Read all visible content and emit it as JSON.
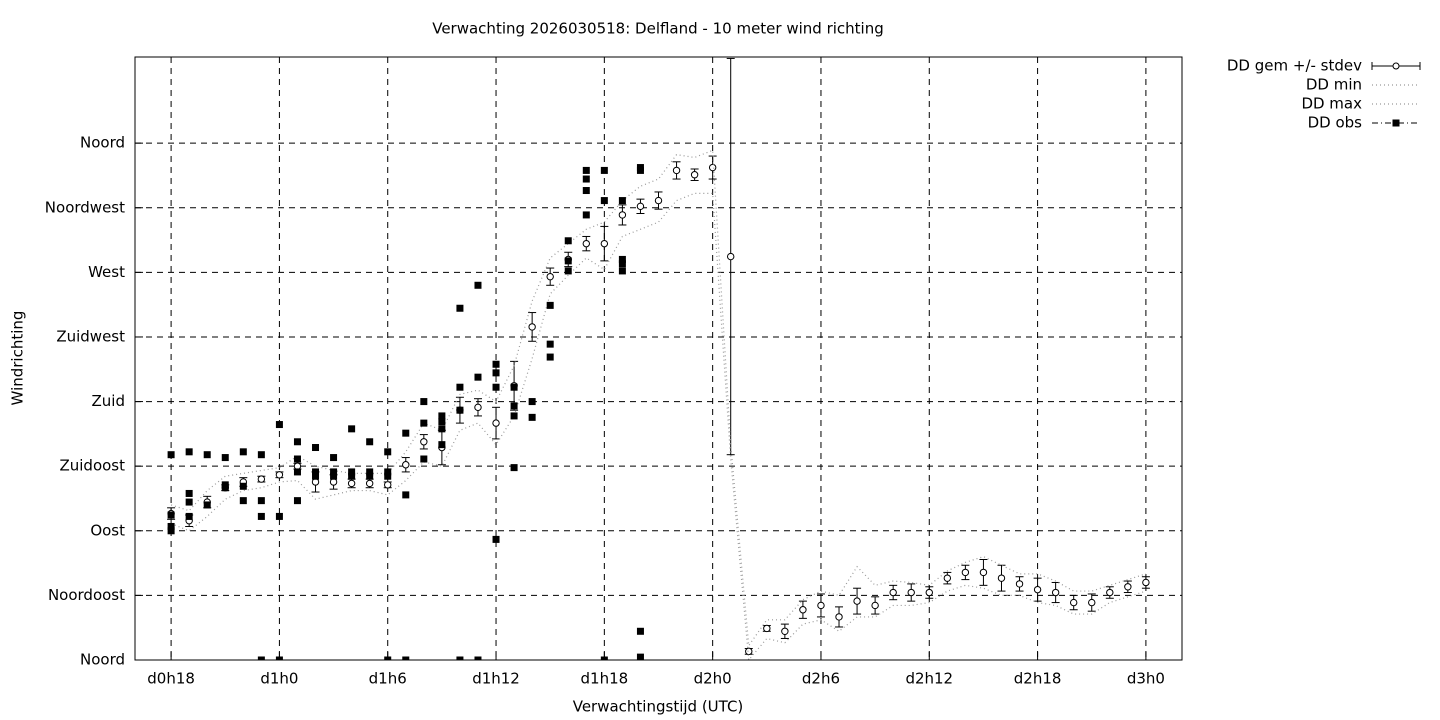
{
  "chart_data": {
    "type": "line",
    "title": "Verwachting 2026030518: Delfland - 10 meter wind richting",
    "x_label": "Verwachtingstijd (UTC)",
    "y_label": "Windrichting",
    "xlim": [
      16,
      74
    ],
    "xticks": [
      {
        "value": 18,
        "label": "d0h18"
      },
      {
        "value": 24,
        "label": "d1h0"
      },
      {
        "value": 30,
        "label": "d1h6"
      },
      {
        "value": 36,
        "label": "d1h12"
      },
      {
        "value": 42,
        "label": "d1h18"
      },
      {
        "value": 48,
        "label": "d2h0"
      },
      {
        "value": 54,
        "label": "d2h6"
      },
      {
        "value": 60,
        "label": "d2h12"
      },
      {
        "value": 66,
        "label": "d2h18"
      },
      {
        "value": 72,
        "label": "d3h0"
      }
    ],
    "ylim": [
      0,
      420
    ],
    "yticks": [
      {
        "value": 0,
        "label": "Noord"
      },
      {
        "value": 45,
        "label": "Noordoost"
      },
      {
        "value": 90,
        "label": "Oost"
      },
      {
        "value": 135,
        "label": "Zuidoost"
      },
      {
        "value": 180,
        "label": "Zuid"
      },
      {
        "value": 225,
        "label": "Zuidwest"
      },
      {
        "value": 270,
        "label": "West"
      },
      {
        "value": 315,
        "label": "Noordwest"
      },
      {
        "value": 360,
        "label": "Noord"
      }
    ],
    "grid": true,
    "legend": "outside-top-right",
    "x": [
      18,
      19,
      20,
      21,
      22,
      23,
      24,
      25,
      26,
      27,
      28,
      29,
      30,
      31,
      32,
      33,
      34,
      35,
      36,
      37,
      38,
      39,
      40,
      41,
      42,
      43,
      44,
      45,
      46,
      47,
      48,
      49,
      50,
      51,
      52,
      53,
      54,
      55,
      56,
      57,
      58,
      59,
      60,
      61,
      62,
      63,
      64,
      65,
      66,
      67,
      68,
      69,
      70,
      71,
      72
    ],
    "series": [
      {
        "name": "DD gem +/- stdev",
        "style": "errorbars",
        "color": "#000000",
        "values": [
          102,
          97,
          110,
          120,
          124,
          126,
          129,
          135,
          124,
          124,
          123,
          123,
          122,
          136,
          152,
          148,
          174,
          176,
          165,
          191,
          232,
          267,
          279,
          290,
          290,
          310,
          316,
          320,
          341,
          338,
          343,
          281,
          6,
          22,
          20,
          35,
          38,
          30,
          41,
          38,
          47,
          47,
          47,
          57,
          61,
          61,
          57,
          53,
          49,
          47,
          40,
          40,
          47,
          51,
          54
        ],
        "errors": [
          4,
          4,
          4,
          2,
          3,
          2,
          2,
          2,
          7,
          5,
          3,
          3,
          2,
          5,
          5,
          12,
          9,
          6,
          11,
          17,
          10,
          6,
          5,
          5,
          12,
          7,
          5,
          6,
          6,
          4,
          8,
          138,
          2,
          2,
          5,
          6,
          8,
          7,
          9,
          6,
          5,
          6,
          4,
          4,
          5,
          9,
          9,
          5,
          8,
          7,
          5,
          6,
          4,
          4,
          4
        ]
      },
      {
        "name": "DD min",
        "style": "dotted",
        "color": "#999999",
        "values": [
          95,
          90,
          100,
          112,
          118,
          120,
          124,
          125,
          112,
          115,
          118,
          118,
          115,
          125,
          138,
          135,
          160,
          165,
          150,
          170,
          210,
          255,
          268,
          280,
          272,
          295,
          300,
          305,
          320,
          325,
          325,
          140,
          0,
          15,
          12,
          25,
          28,
          20,
          30,
          30,
          38,
          38,
          40,
          48,
          52,
          50,
          45,
          45,
          40,
          38,
          32,
          32,
          40,
          44,
          48
        ]
      },
      {
        "name": "DD max",
        "style": "dotted",
        "color": "#999999",
        "values": [
          108,
          104,
          118,
          128,
          130,
          132,
          134,
          142,
          135,
          132,
          130,
          130,
          130,
          145,
          165,
          160,
          185,
          188,
          180,
          205,
          250,
          280,
          290,
          300,
          305,
          320,
          330,
          335,
          352,
          350,
          355,
          150,
          10,
          28,
          28,
          42,
          48,
          45,
          65,
          52,
          55,
          54,
          52,
          62,
          68,
          72,
          66,
          60,
          60,
          55,
          48,
          48,
          52,
          56,
          60
        ]
      },
      {
        "name": "DD obs",
        "style": "points",
        "color": "#000000",
        "x": [
          18,
          18,
          18,
          18,
          19,
          19,
          19,
          19,
          20,
          20,
          21,
          21,
          21,
          22,
          22,
          22,
          23,
          23,
          23,
          23,
          24,
          24,
          24,
          25,
          25,
          25,
          25,
          26,
          26,
          26,
          27,
          27,
          27,
          28,
          28,
          28,
          29,
          29,
          29,
          30,
          30,
          30,
          30,
          31,
          31,
          31,
          32,
          32,
          32,
          33,
          33,
          33,
          33,
          34,
          34,
          34,
          34,
          35,
          35,
          35,
          36,
          36,
          36,
          36,
          37,
          37,
          37,
          37,
          38,
          38,
          39,
          39,
          39,
          40,
          40,
          40,
          41,
          41,
          41,
          41,
          42,
          42,
          42,
          43,
          43,
          43,
          43,
          44,
          44,
          44,
          44
        ],
        "values": [
          143,
          101,
          93,
          90,
          145,
          116,
          110,
          100,
          143,
          108,
          141,
          122,
          120,
          145,
          121,
          111,
          143,
          111,
          100,
          0,
          164,
          100,
          0,
          152,
          140,
          131,
          111,
          148,
          131,
          128,
          141,
          131,
          128,
          161,
          131,
          128,
          152,
          131,
          128,
          145,
          131,
          128,
          0,
          158,
          115,
          0,
          180,
          165,
          140,
          170,
          166,
          161,
          150,
          245,
          190,
          174,
          0,
          261,
          197,
          0,
          206,
          200,
          190,
          84,
          190,
          177,
          170,
          134,
          180,
          169,
          247,
          220,
          211,
          292,
          278,
          271,
          341,
          335,
          327,
          310,
          341,
          320,
          0,
          320,
          279,
          276,
          271,
          343,
          341,
          20,
          2
        ]
      }
    ]
  }
}
